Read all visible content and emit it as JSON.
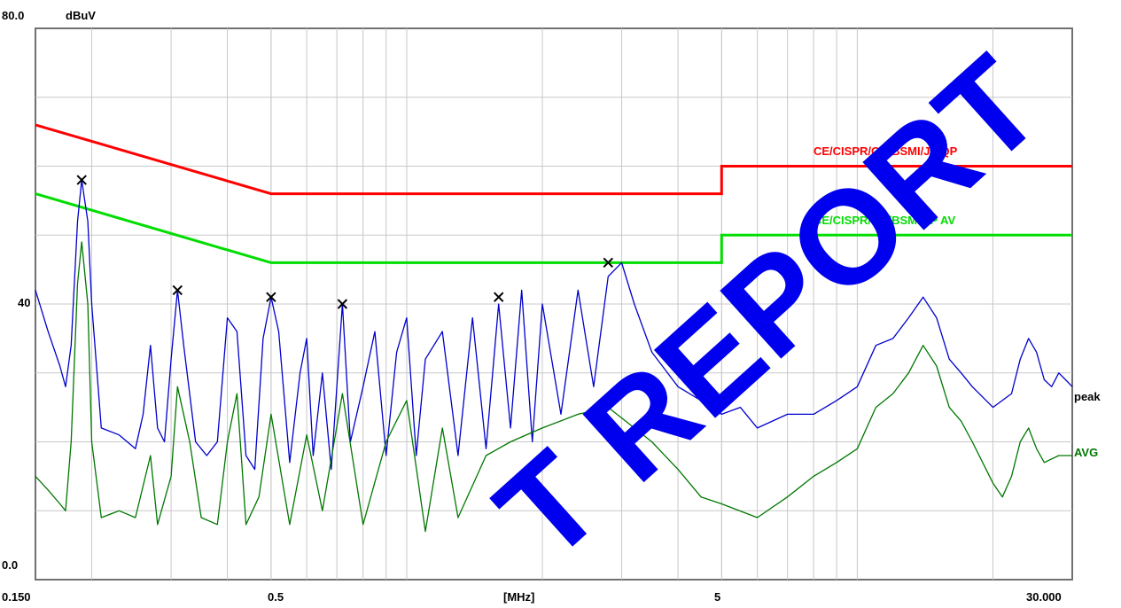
{
  "chart_data": {
    "type": "line",
    "title": "",
    "y_unit": "dBuV",
    "x_unit": "[MHz]",
    "x_scale": "log",
    "xlim": [
      0.15,
      30
    ],
    "ylim": [
      0,
      80
    ],
    "y_tick_labels": [
      "80.0",
      "40",
      "0.0"
    ],
    "x_tick_labels": [
      "0.150",
      "0.5",
      "5",
      "30.000"
    ],
    "grid": true,
    "limits": [
      {
        "name": "CE/CISPR/GB/BSMI/JP QP",
        "color": "#ff0000",
        "points": [
          [
            0.15,
            66
          ],
          [
            0.5,
            56
          ],
          [
            5,
            56
          ],
          [
            5,
            60
          ],
          [
            30,
            60
          ]
        ]
      },
      {
        "name": "CE/CISPR/GB/BSMI/JP AV",
        "color": "#00dd00",
        "points": [
          [
            0.15,
            56
          ],
          [
            0.5,
            46
          ],
          [
            5,
            46
          ],
          [
            5,
            50
          ],
          [
            30,
            50
          ]
        ]
      }
    ],
    "series": [
      {
        "name": "peak",
        "color": "#0000cc",
        "points": [
          [
            0.15,
            42
          ],
          [
            0.16,
            36
          ],
          [
            0.17,
            31
          ],
          [
            0.175,
            28
          ],
          [
            0.18,
            34
          ],
          [
            0.186,
            52
          ],
          [
            0.19,
            58
          ],
          [
            0.196,
            52
          ],
          [
            0.2,
            40
          ],
          [
            0.21,
            22
          ],
          [
            0.23,
            21
          ],
          [
            0.25,
            19
          ],
          [
            0.26,
            24
          ],
          [
            0.27,
            34
          ],
          [
            0.28,
            22
          ],
          [
            0.29,
            20
          ],
          [
            0.3,
            32
          ],
          [
            0.31,
            42
          ],
          [
            0.32,
            34
          ],
          [
            0.34,
            20
          ],
          [
            0.36,
            18
          ],
          [
            0.38,
            20
          ],
          [
            0.4,
            38
          ],
          [
            0.42,
            36
          ],
          [
            0.44,
            18
          ],
          [
            0.46,
            16
          ],
          [
            0.48,
            35
          ],
          [
            0.5,
            41
          ],
          [
            0.52,
            36
          ],
          [
            0.55,
            17
          ],
          [
            0.58,
            30
          ],
          [
            0.6,
            35
          ],
          [
            0.62,
            18
          ],
          [
            0.65,
            30
          ],
          [
            0.68,
            16
          ],
          [
            0.72,
            40
          ],
          [
            0.75,
            20
          ],
          [
            0.8,
            28
          ],
          [
            0.85,
            36
          ],
          [
            0.9,
            18
          ],
          [
            0.95,
            33
          ],
          [
            1.0,
            38
          ],
          [
            1.05,
            18
          ],
          [
            1.1,
            32
          ],
          [
            1.2,
            36
          ],
          [
            1.3,
            18
          ],
          [
            1.4,
            38
          ],
          [
            1.5,
            19
          ],
          [
            1.6,
            40
          ],
          [
            1.7,
            22
          ],
          [
            1.8,
            42
          ],
          [
            1.9,
            20
          ],
          [
            2.0,
            40
          ],
          [
            2.2,
            24
          ],
          [
            2.4,
            42
          ],
          [
            2.6,
            28
          ],
          [
            2.8,
            44
          ],
          [
            3.0,
            46
          ],
          [
            3.2,
            40
          ],
          [
            3.5,
            33
          ],
          [
            4.0,
            28
          ],
          [
            4.5,
            26
          ],
          [
            5.0,
            24
          ],
          [
            5.5,
            25
          ],
          [
            6.0,
            22
          ],
          [
            7.0,
            24
          ],
          [
            8.0,
            24
          ],
          [
            9.0,
            26
          ],
          [
            10.0,
            28
          ],
          [
            11.0,
            34
          ],
          [
            12.0,
            35
          ],
          [
            13.0,
            38
          ],
          [
            14.0,
            41
          ],
          [
            15.0,
            38
          ],
          [
            16.0,
            32
          ],
          [
            17.0,
            30
          ],
          [
            18.0,
            28
          ],
          [
            20.0,
            25
          ],
          [
            22.0,
            27
          ],
          [
            23.0,
            32
          ],
          [
            24.0,
            35
          ],
          [
            25.0,
            33
          ],
          [
            26.0,
            29
          ],
          [
            27.0,
            28
          ],
          [
            28.0,
            30
          ],
          [
            29.0,
            29
          ],
          [
            30.0,
            28
          ]
        ]
      },
      {
        "name": "AVG",
        "color": "#007700",
        "points": [
          [
            0.15,
            15
          ],
          [
            0.16,
            13
          ],
          [
            0.17,
            11
          ],
          [
            0.175,
            10
          ],
          [
            0.18,
            20
          ],
          [
            0.186,
            43
          ],
          [
            0.19,
            49
          ],
          [
            0.196,
            40
          ],
          [
            0.2,
            20
          ],
          [
            0.21,
            9
          ],
          [
            0.23,
            10
          ],
          [
            0.25,
            9
          ],
          [
            0.27,
            18
          ],
          [
            0.28,
            8
          ],
          [
            0.3,
            15
          ],
          [
            0.31,
            28
          ],
          [
            0.33,
            20
          ],
          [
            0.35,
            9
          ],
          [
            0.38,
            8
          ],
          [
            0.4,
            20
          ],
          [
            0.42,
            27
          ],
          [
            0.44,
            8
          ],
          [
            0.47,
            12
          ],
          [
            0.5,
            24
          ],
          [
            0.55,
            8
          ],
          [
            0.6,
            21
          ],
          [
            0.65,
            10
          ],
          [
            0.72,
            27
          ],
          [
            0.8,
            8
          ],
          [
            0.9,
            20
          ],
          [
            1.0,
            26
          ],
          [
            1.1,
            7
          ],
          [
            1.2,
            22
          ],
          [
            1.3,
            9
          ],
          [
            1.5,
            18
          ],
          [
            1.7,
            20
          ],
          [
            2.0,
            22
          ],
          [
            2.4,
            24
          ],
          [
            2.8,
            25
          ],
          [
            3.2,
            22
          ],
          [
            3.5,
            20
          ],
          [
            4.0,
            16
          ],
          [
            4.5,
            12
          ],
          [
            5.0,
            11
          ],
          [
            6.0,
            9
          ],
          [
            7.0,
            12
          ],
          [
            8.0,
            15
          ],
          [
            9.0,
            17
          ],
          [
            10.0,
            19
          ],
          [
            11.0,
            25
          ],
          [
            12.0,
            27
          ],
          [
            13.0,
            30
          ],
          [
            14.0,
            34
          ],
          [
            15.0,
            31
          ],
          [
            16.0,
            25
          ],
          [
            17.0,
            23
          ],
          [
            18.0,
            20
          ],
          [
            20.0,
            14
          ],
          [
            21.0,
            12
          ],
          [
            22.0,
            15
          ],
          [
            23.0,
            20
          ],
          [
            24.0,
            22
          ],
          [
            25.0,
            19
          ],
          [
            26.0,
            17
          ],
          [
            28.0,
            18
          ],
          [
            30.0,
            18
          ]
        ]
      }
    ],
    "markers": [
      [
        0.19,
        58
      ],
      [
        0.31,
        42
      ],
      [
        0.5,
        41
      ],
      [
        0.72,
        40
      ],
      [
        1.6,
        41
      ],
      [
        2.8,
        46
      ]
    ]
  },
  "watermark": {
    "text": "T REPORT",
    "color": "#0000ee"
  }
}
